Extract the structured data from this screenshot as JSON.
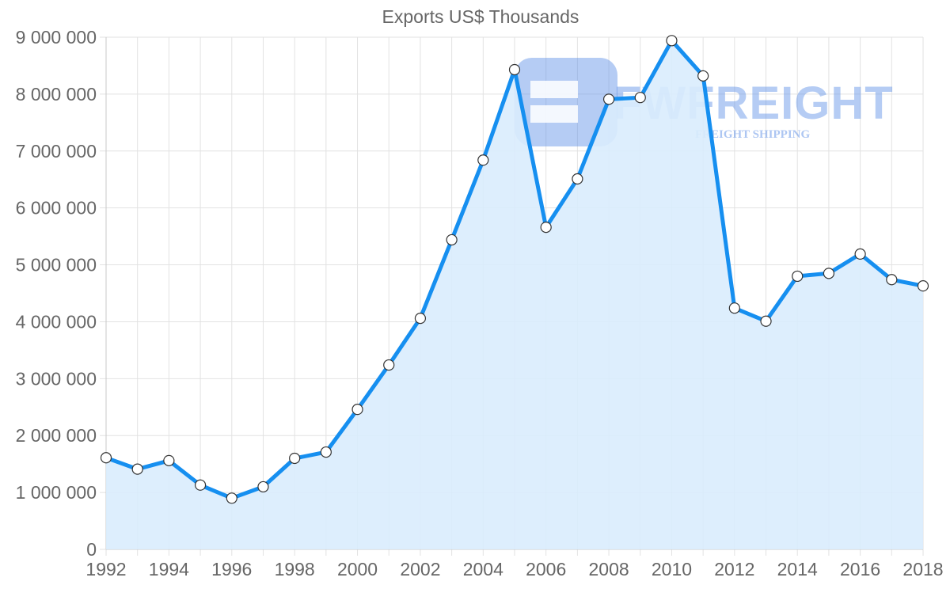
{
  "chart_data": {
    "type": "area",
    "title": "Exports US$ Thousands",
    "xlabel": "",
    "ylabel": "",
    "x": [
      1992,
      1993,
      1994,
      1995,
      1996,
      1997,
      1998,
      1999,
      2000,
      2001,
      2002,
      2003,
      2004,
      2005,
      2006,
      2007,
      2008,
      2009,
      2010,
      2011,
      2012,
      2013,
      2014,
      2015,
      2016,
      2017,
      2018
    ],
    "series": [
      {
        "name": "Exports US$ Thousands",
        "values": [
          1610000,
          1410000,
          1560000,
          1130000,
          900000,
          1100000,
          1600000,
          1710000,
          2460000,
          3240000,
          4060000,
          5440000,
          6840000,
          8430000,
          5660000,
          6510000,
          7910000,
          7940000,
          8940000,
          8320000,
          4240000,
          4010000,
          4800000,
          4850000,
          5190000,
          4740000,
          4630000
        ],
        "line_color": "#168ff0",
        "fill_color": "#d9ecfd"
      }
    ],
    "ylim": [
      0,
      9000000
    ],
    "yticks": [
      0,
      1000000,
      2000000,
      3000000,
      4000000,
      5000000,
      6000000,
      7000000,
      8000000,
      9000000
    ],
    "ytick_labels": [
      "0",
      "1 000 000",
      "2 000 000",
      "3 000 000",
      "4 000 000",
      "5 000 000",
      "6 000 000",
      "7 000 000",
      "8 000 000",
      "9 000 000"
    ],
    "xtick_labels": [
      "1992",
      "1994",
      "1996",
      "1998",
      "2000",
      "2002",
      "2004",
      "2006",
      "2008",
      "2010",
      "2012",
      "2014",
      "2016",
      "2018"
    ],
    "grid": true,
    "legend": "none"
  },
  "watermark": {
    "brand": "FWFREIGHT",
    "tagline": "FREIGHT SHIPPING"
  }
}
